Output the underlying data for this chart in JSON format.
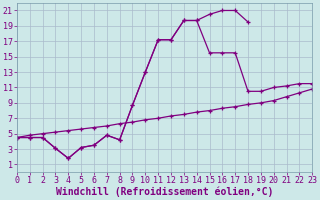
{
  "xlabel": "Windchill (Refroidissement éolien,°C)",
  "bg_color": "#cde8e8",
  "line_color": "#800080",
  "grid_color": "#aabbcc",
  "xmin": 0,
  "xmax": 23,
  "ymin": 0,
  "ymax": 22,
  "xticks": [
    0,
    1,
    2,
    3,
    4,
    5,
    6,
    7,
    8,
    9,
    10,
    11,
    12,
    13,
    14,
    15,
    16,
    17,
    18,
    19,
    20,
    21,
    22,
    23
  ],
  "yticks": [
    1,
    3,
    5,
    7,
    9,
    11,
    13,
    15,
    17,
    19,
    21
  ],
  "curve1_x": [
    0,
    1,
    2,
    3,
    4,
    5,
    6,
    7,
    8,
    9,
    10,
    11,
    12,
    13,
    14,
    15,
    16,
    17,
    18
  ],
  "curve1_y": [
    4.5,
    4.5,
    4.5,
    3.1,
    1.8,
    3.2,
    3.5,
    4.8,
    4.2,
    8.7,
    13.0,
    17.2,
    17.2,
    19.7,
    19.7,
    20.5,
    21.0,
    21.0,
    19.5
  ],
  "curve2_x": [
    0,
    1,
    2,
    3,
    4,
    5,
    6,
    7,
    8,
    9,
    10,
    11,
    12,
    13,
    14,
    15,
    16,
    17,
    18,
    19,
    20,
    21,
    22,
    23
  ],
  "curve2_y": [
    4.5,
    4.5,
    4.5,
    3.1,
    1.8,
    3.2,
    3.5,
    4.8,
    4.2,
    8.7,
    13.0,
    17.2,
    17.2,
    19.7,
    19.7,
    15.5,
    15.5,
    15.5,
    10.5,
    10.5,
    11.0,
    11.2,
    11.5,
    11.5
  ],
  "curve3_x": [
    0,
    1,
    2,
    3,
    4,
    5,
    6,
    7,
    8,
    9,
    10,
    11,
    12,
    13,
    14,
    15,
    16,
    17,
    18,
    19,
    20,
    21,
    22,
    23
  ],
  "curve3_y": [
    4.5,
    4.8,
    5.0,
    5.2,
    5.4,
    5.6,
    5.8,
    6.0,
    6.3,
    6.5,
    6.8,
    7.0,
    7.3,
    7.5,
    7.8,
    8.0,
    8.3,
    8.5,
    8.8,
    9.0,
    9.3,
    9.8,
    10.3,
    10.8
  ],
  "font_size": 7,
  "tick_font_size": 6,
  "xlabel_fontsize": 7
}
